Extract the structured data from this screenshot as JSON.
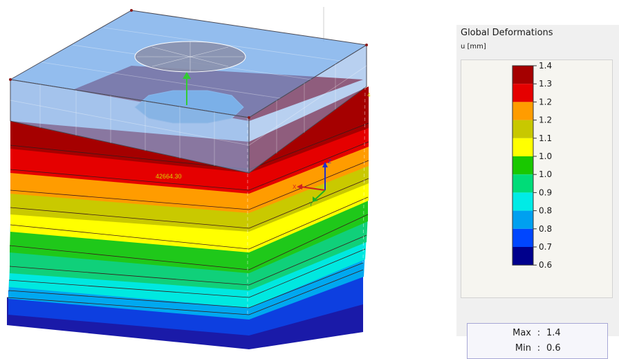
{
  "model": {
    "load_value": "42664.30",
    "edge_label": "4"
  },
  "panel": {
    "title": "Global Deformations",
    "unit": "u [mm]",
    "scale": [
      {
        "value": "1.4",
        "color": "#a50000"
      },
      {
        "value": "1.3",
        "color": "#e50000"
      },
      {
        "value": "1.2",
        "color": "#ff9c00"
      },
      {
        "value": "1.2",
        "color": "#c8c800"
      },
      {
        "value": "1.1",
        "color": "#ffff00"
      },
      {
        "value": "1.0",
        "color": "#19c800"
      },
      {
        "value": "1.0",
        "color": "#00dc78"
      },
      {
        "value": "0.9",
        "color": "#00ebe6"
      },
      {
        "value": "0.8",
        "color": "#00a0f0"
      },
      {
        "value": "0.8",
        "color": "#0046ff"
      },
      {
        "value": "0.7",
        "color": "#0000c8"
      },
      {
        "value": "0.6",
        "color": ""
      }
    ],
    "max_label": "Max",
    "max_value": "1.4",
    "min_label": "Min",
    "min_value": "0.6",
    "separator": ":"
  },
  "axes": {
    "x": "X",
    "y": "Y",
    "z": "Z"
  }
}
